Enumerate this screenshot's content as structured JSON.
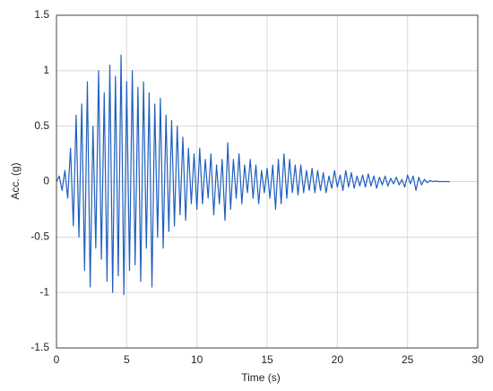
{
  "chart_data": {
    "type": "line",
    "xlabel": "Time (s)",
    "ylabel": "Acc. (g)",
    "x": [
      0,
      0.2,
      0.4,
      0.6,
      0.8,
      1,
      1.2,
      1.4,
      1.6,
      1.8,
      2,
      2.2,
      2.4,
      2.6,
      2.8,
      3,
      3.2,
      3.4,
      3.6,
      3.8,
      4,
      4.2,
      4.4,
      4.6,
      4.8,
      5,
      5.2,
      5.4,
      5.6,
      5.8,
      6,
      6.2,
      6.4,
      6.6,
      6.8,
      7,
      7.2,
      7.4,
      7.6,
      7.8,
      8,
      8.2,
      8.4,
      8.6,
      8.8,
      9,
      9.2,
      9.4,
      9.6,
      9.8,
      10,
      10.2,
      10.4,
      10.6,
      10.8,
      11,
      11.2,
      11.4,
      11.6,
      11.8,
      12,
      12.2,
      12.4,
      12.6,
      12.8,
      13,
      13.2,
      13.4,
      13.6,
      13.8,
      14,
      14.2,
      14.4,
      14.6,
      14.8,
      15,
      15.2,
      15.4,
      15.6,
      15.8,
      16,
      16.2,
      16.4,
      16.6,
      16.8,
      17,
      17.2,
      17.4,
      17.6,
      17.8,
      18,
      18.2,
      18.4,
      18.6,
      18.8,
      19,
      19.2,
      19.4,
      19.6,
      19.8,
      20,
      20.2,
      20.4,
      20.6,
      20.8,
      21,
      21.2,
      21.4,
      21.6,
      21.8,
      22,
      22.2,
      22.4,
      22.6,
      22.8,
      23,
      23.2,
      23.4,
      23.6,
      23.8,
      24,
      24.2,
      24.4,
      24.6,
      24.8,
      25,
      25.2,
      25.4,
      25.6,
      25.8,
      26,
      26.2,
      26.4,
      26.6,
      26.8,
      27,
      27.2,
      27.4,
      27.6,
      27.8,
      28
    ],
    "values": [
      0,
      0.05,
      -0.08,
      0.1,
      -0.15,
      0.3,
      -0.4,
      0.6,
      -0.5,
      0.7,
      -0.8,
      0.9,
      -0.95,
      0.5,
      -0.6,
      1.0,
      -0.7,
      0.8,
      -0.9,
      1.05,
      -1.0,
      0.95,
      -0.85,
      1.14,
      -1.02,
      0.9,
      -0.8,
      1.0,
      -0.75,
      0.85,
      -0.9,
      0.9,
      -0.6,
      0.8,
      -0.95,
      0.7,
      -0.5,
      0.75,
      -0.6,
      0.6,
      -0.45,
      0.55,
      -0.4,
      0.5,
      -0.3,
      0.4,
      -0.35,
      0.3,
      -0.2,
      0.25,
      -0.25,
      0.3,
      -0.2,
      0.2,
      -0.15,
      0.25,
      -0.3,
      0.15,
      -0.2,
      0.2,
      -0.35,
      0.35,
      -0.25,
      0.2,
      -0.15,
      0.25,
      -0.2,
      0.15,
      -0.1,
      0.2,
      -0.15,
      0.15,
      -0.2,
      0.1,
      -0.1,
      0.12,
      -0.15,
      0.15,
      -0.25,
      0.2,
      -0.2,
      0.25,
      -0.15,
      0.2,
      -0.1,
      0.15,
      -0.12,
      0.15,
      -0.1,
      0.1,
      -0.08,
      0.12,
      -0.1,
      0.1,
      -0.08,
      0.08,
      -0.1,
      0.05,
      -0.06,
      0.1,
      -0.05,
      0.06,
      -0.08,
      0.1,
      -0.05,
      0.08,
      -0.06,
      0.05,
      -0.04,
      0.06,
      -0.05,
      0.07,
      -0.04,
      0.05,
      -0.06,
      0.04,
      -0.03,
      0.05,
      -0.04,
      0.03,
      -0.02,
      0.04,
      -0.03,
      0.02,
      -0.05,
      0.06,
      -0.02,
      0.05,
      -0.08,
      0.04,
      -0.03,
      0.02,
      -0.01,
      0.01,
      0,
      0.005,
      0,
      0,
      0,
      0,
      0
    ],
    "color": "#1f5fbf",
    "xlim": [
      0,
      30
    ],
    "xticks": [
      0,
      5,
      10,
      15,
      20,
      25,
      30
    ],
    "ylim": [
      -1.5,
      1.5
    ],
    "yticks": [
      -1.5,
      -1,
      -0.5,
      0,
      0.5,
      1,
      1.5
    ],
    "grid": true
  }
}
